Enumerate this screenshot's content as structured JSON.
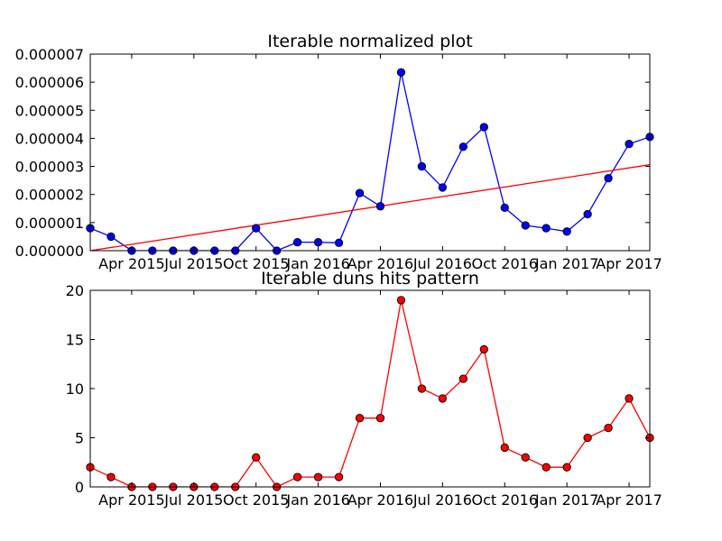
{
  "chart_data": [
    {
      "type": "line",
      "title": "Iterable normalized plot",
      "xlabel": "",
      "ylabel": "",
      "x_tick_labels": [
        "Apr 2015",
        "Jul 2015",
        "Oct 2015",
        "Jan 2016",
        "Apr 2016",
        "Jul 2016",
        "Oct 2016",
        "Jan 2017",
        "Apr 2017"
      ],
      "x_ticks_month_index": [
        2,
        5,
        8,
        11,
        14,
        17,
        20,
        23,
        26
      ],
      "xlim_month_index": [
        0.0,
        27.0
      ],
      "ylim": [
        0,
        7e-06
      ],
      "y_tick_labels": [
        "0.000000",
        "0.000001",
        "0.000002",
        "0.000003",
        "0.000004",
        "0.000005",
        "0.000006",
        "0.000007"
      ],
      "y_tick_values": [
        0,
        1e-06,
        2e-06,
        3e-06,
        4e-06,
        5e-06,
        6e-06,
        7e-06
      ],
      "grid": false,
      "series": [
        {
          "color": "#0000ff",
          "marker": "circle",
          "x_month_index": [
            0.0,
            1.0,
            2.0,
            3.0,
            4.0,
            5.0,
            6.0,
            7.0,
            8.0,
            9.0,
            10.0,
            11.0,
            12.0,
            13.0,
            14.0,
            15.0,
            16.0,
            17.0,
            18.0,
            19.0,
            20.0,
            21.0,
            22.0,
            23.0,
            24.0,
            25.0,
            26.0,
            27.0
          ],
          "values": [
            8e-07,
            5e-07,
            0.0,
            0.0,
            0.0,
            0.0,
            0.0,
            0.0,
            8e-07,
            0.0,
            3e-07,
            3e-07,
            2.8e-07,
            2.05e-06,
            1.58e-06,
            6.35e-06,
            3e-06,
            2.25e-06,
            3.7e-06,
            4.4e-06,
            1.53e-06,
            9e-07,
            8e-07,
            6.8e-07,
            1.3e-06,
            2.58e-06,
            3.8e-06,
            4.05e-06
          ]
        },
        {
          "color": "#ff0000",
          "marker": "none",
          "x_month_index": [
            0.0,
            27.0
          ],
          "values": [
            0.0,
            3.06e-06
          ]
        }
      ]
    },
    {
      "type": "line",
      "title": "Iterable duns hits pattern",
      "xlabel": "",
      "ylabel": "",
      "x_tick_labels": [
        "Apr 2015",
        "Jul 2015",
        "Oct 2015",
        "Jan 2016",
        "Apr 2016",
        "Jul 2016",
        "Oct 2016",
        "Jan 2017",
        "Apr 2017"
      ],
      "x_ticks_month_index": [
        2,
        5,
        8,
        11,
        14,
        17,
        20,
        23,
        26
      ],
      "xlim_month_index": [
        0.0,
        27.0
      ],
      "ylim": [
        0,
        20
      ],
      "y_tick_labels": [
        "0",
        "5",
        "10",
        "15",
        "20"
      ],
      "y_tick_values": [
        0,
        5,
        10,
        15,
        20
      ],
      "grid": false,
      "series": [
        {
          "color": "#ff0000",
          "marker": "circle",
          "x_month_index": [
            0.0,
            1.0,
            2.0,
            3.0,
            4.0,
            5.0,
            6.0,
            7.0,
            8.0,
            9.0,
            10.0,
            11.0,
            12.0,
            13.0,
            14.0,
            15.0,
            16.0,
            17.0,
            18.0,
            19.0,
            20.0,
            21.0,
            22.0,
            23.0,
            24.0,
            25.0,
            26.0,
            27.0
          ],
          "values": [
            2,
            1,
            0,
            0,
            0,
            0,
            0,
            0,
            3,
            0,
            1,
            1,
            1,
            7,
            7,
            19,
            10,
            9,
            11,
            14,
            4,
            3,
            2,
            2,
            5,
            6,
            9,
            5
          ]
        }
      ]
    }
  ]
}
